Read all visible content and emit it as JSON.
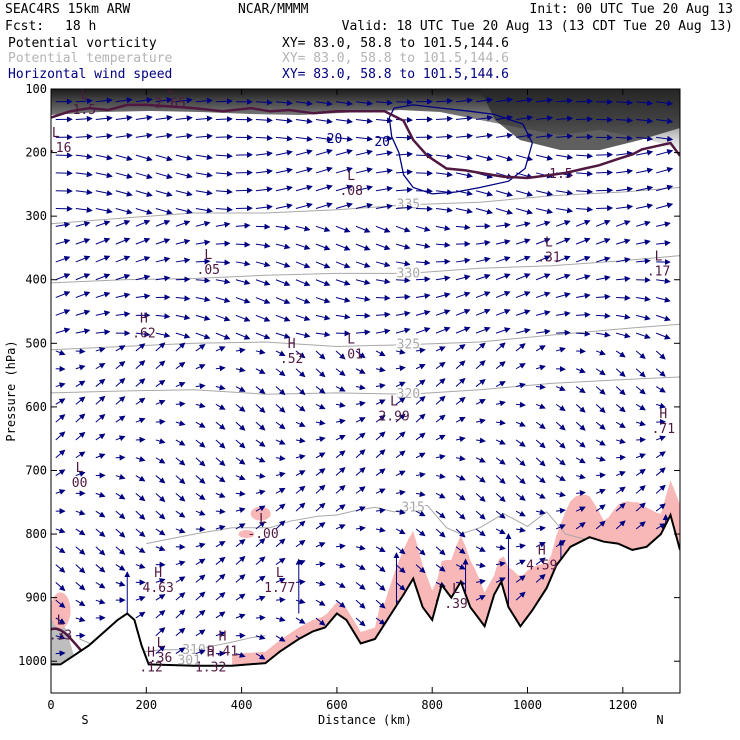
{
  "header": {
    "model": "SEAC4RS 15km ARW",
    "org": "NCAR/MMMM",
    "init": "Init: 00 UTC Tue 20 Aug 13",
    "fcst_label": "Fcst:",
    "fcst_value": "18 h",
    "valid": "Valid: 18 UTC Tue 20 Aug 13 (13 CDT Tue 20 Aug 13)",
    "fields": [
      {
        "name": "Potential vorticity",
        "xy": "XY=  83.0, 58.8 to 101.5,144.6",
        "color": "#000000"
      },
      {
        "name": "Potential temperature",
        "xy": "XY=  83.0, 58.8 to 101.5,144.6",
        "color": "#b4b4b4"
      },
      {
        "name": "Horizontal wind speed",
        "xy": "XY=  83.0, 58.8 to 101.5,144.6",
        "color": "#000080"
      }
    ]
  },
  "chart_data": {
    "type": "cross-section",
    "xlabel": "Distance (km)",
    "ylabel": "Pressure (hPa)",
    "xlim": [
      0,
      1320
    ],
    "ylim": [
      1050,
      100
    ],
    "xticks": [
      0,
      200,
      400,
      600,
      800,
      1000,
      1200
    ],
    "yticks": [
      100,
      200,
      300,
      400,
      500,
      600,
      700,
      800,
      900,
      1000
    ],
    "left_end": "S",
    "right_end": "N",
    "colors": {
      "pv": "#501840",
      "theta": "#a8a8a8",
      "wind": "#000080",
      "cloud": "#f8b8b8",
      "terrain": "#000000"
    },
    "terrain_surface": [
      [
        0,
        1005
      ],
      [
        20,
        1005
      ],
      [
        50,
        990
      ],
      [
        80,
        975
      ],
      [
        110,
        955
      ],
      [
        140,
        935
      ],
      [
        160,
        925
      ],
      [
        175,
        935
      ],
      [
        190,
        975
      ],
      [
        205,
        1005
      ],
      [
        300,
        1007
      ],
      [
        380,
        1007
      ],
      [
        450,
        1003
      ],
      [
        480,
        985
      ],
      [
        520,
        965
      ],
      [
        550,
        953
      ],
      [
        575,
        947
      ],
      [
        600,
        925
      ],
      [
        620,
        935
      ],
      [
        650,
        972
      ],
      [
        680,
        965
      ],
      [
        710,
        930
      ],
      [
        740,
        895
      ],
      [
        760,
        870
      ],
      [
        780,
        915
      ],
      [
        800,
        935
      ],
      [
        820,
        880
      ],
      [
        840,
        900
      ],
      [
        860,
        875
      ],
      [
        880,
        915
      ],
      [
        900,
        935
      ],
      [
        910,
        945
      ],
      [
        930,
        895
      ],
      [
        945,
        875
      ],
      [
        960,
        915
      ],
      [
        985,
        945
      ],
      [
        1010,
        920
      ],
      [
        1040,
        885
      ],
      [
        1060,
        850
      ],
      [
        1090,
        820
      ],
      [
        1130,
        805
      ],
      [
        1160,
        812
      ],
      [
        1190,
        815
      ],
      [
        1220,
        825
      ],
      [
        1250,
        820
      ],
      [
        1280,
        800
      ],
      [
        1300,
        770
      ],
      [
        1320,
        825
      ]
    ],
    "theta_contours": [
      {
        "label": "320",
        "points": [
          [
            0,
            578
          ],
          [
            150,
            575
          ],
          [
            300,
            573
          ],
          [
            450,
            580
          ],
          [
            600,
            578
          ],
          [
            750,
            580
          ],
          [
            900,
            573
          ],
          [
            1050,
            563
          ],
          [
            1200,
            557
          ],
          [
            1320,
            553
          ]
        ]
      },
      {
        "label": "325",
        "points": [
          [
            0,
            510
          ],
          [
            150,
            505
          ],
          [
            300,
            500
          ],
          [
            450,
            498
          ],
          [
            600,
            505
          ],
          [
            750,
            502
          ],
          [
            900,
            498
          ],
          [
            1050,
            487
          ],
          [
            1200,
            477
          ],
          [
            1320,
            470
          ]
        ]
      },
      {
        "label": "330",
        "points": [
          [
            0,
            405
          ],
          [
            150,
            400
          ],
          [
            300,
            398
          ],
          [
            450,
            393
          ],
          [
            600,
            390
          ],
          [
            750,
            390
          ],
          [
            900,
            382
          ],
          [
            1050,
            378
          ],
          [
            1200,
            370
          ],
          [
            1320,
            362
          ]
        ]
      },
      {
        "label": "335",
        "points": [
          [
            0,
            312
          ],
          [
            150,
            303
          ],
          [
            300,
            295
          ],
          [
            450,
            295
          ],
          [
            600,
            290
          ],
          [
            750,
            282
          ],
          [
            900,
            278
          ],
          [
            1050,
            268
          ],
          [
            1200,
            262
          ],
          [
            1320,
            255
          ]
        ]
      },
      {
        "label": "315",
        "points": [
          [
            200,
            815
          ],
          [
            300,
            800
          ],
          [
            380,
            790
          ],
          [
            460,
            790
          ],
          [
            500,
            780
          ],
          [
            560,
            772
          ],
          [
            600,
            770
          ],
          [
            640,
            763
          ],
          [
            680,
            758
          ],
          [
            720,
            765
          ],
          [
            760,
            758
          ],
          [
            790,
            755
          ],
          [
            830,
            790
          ],
          [
            860,
            800
          ],
          [
            900,
            790
          ],
          [
            950,
            768
          ],
          [
            1000,
            788
          ],
          [
            1040,
            765
          ],
          [
            1080,
            800
          ],
          [
            1120,
            808
          ]
        ]
      },
      {
        "label": "310",
        "points": [
          [
            60,
            965
          ],
          [
            100,
            978
          ],
          [
            160,
            988
          ],
          [
            230,
            982
          ],
          [
            300,
            982
          ],
          [
            380,
            970
          ],
          [
            420,
            963
          ],
          [
            450,
            960
          ]
        ]
      }
    ],
    "pv_contours": [
      {
        "label": "1.5",
        "points": [
          [
            0,
            145
          ],
          [
            40,
            135
          ],
          [
            80,
            130
          ],
          [
            120,
            133
          ],
          [
            160,
            125
          ],
          [
            200,
            125
          ],
          [
            260,
            128
          ],
          [
            300,
            130
          ],
          [
            360,
            135
          ],
          [
            420,
            130
          ],
          [
            460,
            135
          ],
          [
            500,
            133
          ],
          [
            550,
            138
          ],
          [
            600,
            135
          ],
          [
            660,
            135
          ],
          [
            700,
            135
          ],
          [
            740,
            150
          ],
          [
            760,
            180
          ],
          [
            790,
            205
          ],
          [
            830,
            225
          ],
          [
            870,
            228
          ],
          [
            900,
            232
          ],
          [
            950,
            238
          ],
          [
            1000,
            240
          ],
          [
            1040,
            236
          ],
          [
            1080,
            232
          ],
          [
            1120,
            225
          ],
          [
            1150,
            220
          ],
          [
            1190,
            210
          ],
          [
            1220,
            203
          ],
          [
            1240,
            195
          ],
          [
            1270,
            190
          ],
          [
            1300,
            185
          ],
          [
            1320,
            205
          ]
        ]
      }
    ],
    "wind_contours": [
      {
        "label": "20",
        "points": [
          [
            710,
            145
          ],
          [
            720,
            130
          ],
          [
            760,
            125
          ],
          [
            820,
            130
          ],
          [
            880,
            135
          ],
          [
            930,
            140
          ],
          [
            990,
            155
          ],
          [
            1010,
            185
          ],
          [
            995,
            225
          ],
          [
            960,
            245
          ],
          [
            900,
            255
          ],
          [
            850,
            262
          ],
          [
            800,
            265
          ],
          [
            760,
            255
          ],
          [
            740,
            235
          ],
          [
            730,
            200
          ],
          [
            715,
            175
          ],
          [
            710,
            145
          ]
        ]
      }
    ],
    "extrema": [
      {
        "type": "L",
        "value": "2.65",
        "x": 250,
        "p": 118
      },
      {
        "type": "L",
        "value": "1.5",
        "x": 70,
        "p": 128
      },
      {
        "type": "L",
        "value": "1.16",
        "x": 10,
        "p": 188
      },
      {
        "type": "L",
        "value": ".08",
        "x": 630,
        "p": 256
      },
      {
        "type": "L",
        "value": ".05",
        "x": 330,
        "p": 380
      },
      {
        "type": "L",
        "value": ".31",
        "x": 1045,
        "p": 360
      },
      {
        "type": "L",
        "value": ".17",
        "x": 1275,
        "p": 382
      },
      {
        "type": "H",
        "value": ".62",
        "x": 195,
        "p": 480
      },
      {
        "type": "H",
        "value": ".52",
        "x": 505,
        "p": 520
      },
      {
        "type": "L",
        "value": ".01",
        "x": 630,
        "p": 513
      },
      {
        "type": "L",
        "value": "2.99",
        "x": 720,
        "p": 610
      },
      {
        "type": "H",
        "value": ".71",
        "x": 1285,
        "p": 630
      },
      {
        "type": "L",
        "value": "00",
        "x": 60,
        "p": 715
      },
      {
        "type": "L",
        "value": "-.00",
        "x": 445,
        "p": 795
      },
      {
        "type": "H",
        "value": "4.63",
        "x": 225,
        "p": 880
      },
      {
        "type": "L",
        "value": "1.77",
        "x": 480,
        "p": 880
      },
      {
        "type": "H",
        "value": "4.59",
        "x": 1030,
        "p": 845
      },
      {
        "type": "L",
        "value": ".39",
        "x": 850,
        "p": 905
      },
      {
        "type": "L",
        "value": ".36",
        "x": 230,
        "p": 990
      },
      {
        "type": "H",
        "value": "5.41",
        "x": 360,
        "p": 980
      },
      {
        "type": "H",
        "value": ".12",
        "x": 210,
        "p": 1005
      },
      {
        "type": "H",
        "value": "1.32",
        "x": 335,
        "p": 1005
      },
      {
        "type": "L",
        "value": ".33",
        "x": 20,
        "p": 955
      }
    ],
    "other_labels": [
      {
        "text": "20",
        "x": 695,
        "p": 190,
        "color": "#000080"
      },
      {
        "text": "20",
        "x": 595,
        "p": 185,
        "color": "#000080"
      },
      {
        "text": "1.5",
        "x": 1070,
        "p": 240,
        "color": "#501840"
      },
      {
        "text": "301",
        "x": 290,
        "p": 1005,
        "color": "#a8a8a8"
      }
    ]
  }
}
